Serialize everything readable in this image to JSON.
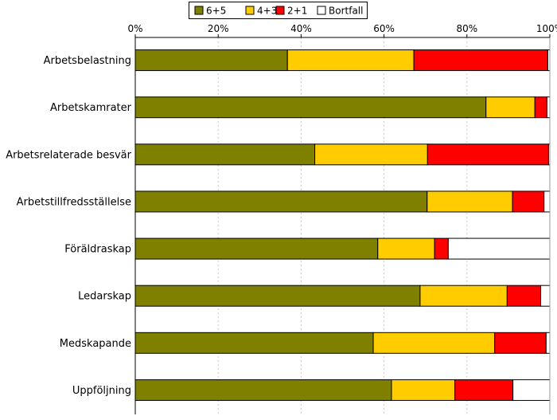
{
  "chart_data": {
    "type": "bar",
    "orientation": "horizontal",
    "stacked": true,
    "x_tick_labels": [
      "0%",
      "20%",
      "40%",
      "60%",
      "80%",
      "100%"
    ],
    "xlim": [
      0,
      100
    ],
    "grid": true,
    "legend_position": "top",
    "categories": [
      "Arbetsbelastning",
      "Arbetskamrater",
      "Arbetsrelaterade besvär",
      "Arbetstillfredsställelse",
      "Föräldraskap",
      "Ledarskap",
      "Medskapande",
      "Uppföljning"
    ],
    "series": [
      {
        "name": "6+5",
        "color": "#808000",
        "values": [
          36.7,
          84.6,
          43.3,
          70.4,
          58.5,
          68.7,
          57.4,
          61.8
        ]
      },
      {
        "name": "4+3",
        "color": "#ffcc00",
        "values": [
          30.5,
          11.8,
          27.2,
          20.6,
          13.7,
          21.0,
          29.3,
          15.3
        ]
      },
      {
        "name": "2+1",
        "color": "#ff0000",
        "values": [
          32.3,
          2.9,
          29.2,
          7.6,
          3.3,
          8.1,
          12.4,
          14.0
        ]
      },
      {
        "name": "Bortfall",
        "color": "#ffffff",
        "values": [
          0.5,
          0.7,
          0.3,
          1.4,
          24.5,
          2.2,
          0.9,
          8.9
        ]
      }
    ]
  }
}
